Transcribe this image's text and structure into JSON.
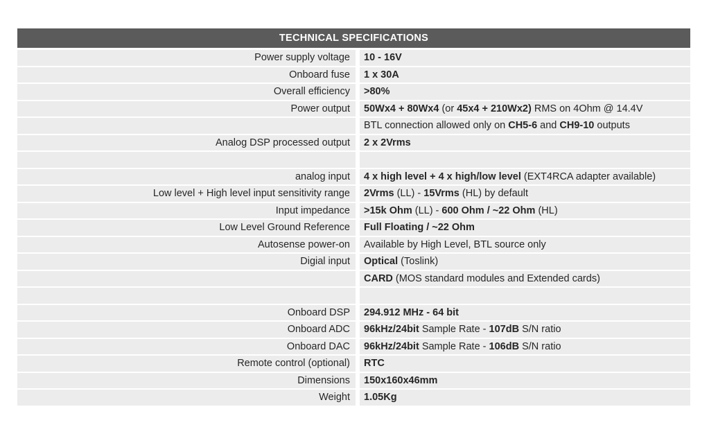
{
  "title": "TECHNICAL SPECIFICATIONS",
  "rows": [
    {
      "label": "Power supply voltage",
      "value": [
        {
          "t": "10 - 16V",
          "b": true
        }
      ]
    },
    {
      "label": "Onboard fuse",
      "value": [
        {
          "t": "1 x 30A",
          "b": true
        }
      ]
    },
    {
      "label": "Overall efficiency",
      "value": [
        {
          "t": ">80%",
          "b": true
        }
      ]
    },
    {
      "label": "Power output",
      "value": [
        {
          "t": "50Wx4 + 80Wx4",
          "b": true
        },
        {
          "t": " (or "
        },
        {
          "t": "45x4 + 210Wx2)",
          "b": true
        },
        {
          "t": " RMS on 4Ohm @ 14.4V"
        }
      ]
    },
    {
      "label": "",
      "value": [
        {
          "t": "BTL connection allowed only on "
        },
        {
          "t": "CH5-6",
          "b": true
        },
        {
          "t": " and "
        },
        {
          "t": "CH9-10",
          "b": true
        },
        {
          "t": " outputs"
        }
      ]
    },
    {
      "label": "Analog DSP processed output",
      "value": [
        {
          "t": "2 x 2Vrms",
          "b": true
        }
      ]
    },
    {
      "label": "",
      "value": []
    },
    {
      "label": "analog input",
      "value": [
        {
          "t": "4 x high level + 4 x high/low level",
          "b": true
        },
        {
          "t": " (EXT4RCA adapter available)"
        }
      ]
    },
    {
      "label": "Low level + High level input sensitivity range",
      "value": [
        {
          "t": "2Vrms",
          "b": true
        },
        {
          "t": " (LL) - "
        },
        {
          "t": "15Vrms",
          "b": true
        },
        {
          "t": " (HL) by default"
        }
      ]
    },
    {
      "label": "Input impedance",
      "value": [
        {
          "t": ">15k Ohm",
          "b": true
        },
        {
          "t": " (LL) - "
        },
        {
          "t": "600 Ohm / ~22 Ohm",
          "b": true
        },
        {
          "t": " (HL)"
        }
      ]
    },
    {
      "label": "Low Level Ground Reference",
      "value": [
        {
          "t": "Full Floating / ~22 Ohm",
          "b": true
        }
      ]
    },
    {
      "label": "Autosense power-on",
      "value": [
        {
          "t": "Available by High Level, BTL source only"
        }
      ]
    },
    {
      "label": "Digial input",
      "value": [
        {
          "t": "Optical",
          "b": true
        },
        {
          "t": " (Toslink)"
        }
      ]
    },
    {
      "label": "",
      "value": [
        {
          "t": "CARD",
          "b": true
        },
        {
          "t": " (MOS standard modules and Extended cards)"
        }
      ]
    },
    {
      "label": "",
      "value": []
    },
    {
      "label": "Onboard DSP",
      "value": [
        {
          "t": "294.912 MHz  - 64 bit",
          "b": true
        }
      ]
    },
    {
      "label": "Onboard ADC",
      "value": [
        {
          "t": "96kHz/24bit",
          "b": true
        },
        {
          "t": " Sample Rate - "
        },
        {
          "t": "107dB",
          "b": true
        },
        {
          "t": " S/N ratio"
        }
      ]
    },
    {
      "label": "Onboard DAC",
      "value": [
        {
          "t": "96kHz/24bit",
          "b": true
        },
        {
          "t": " Sample Rate - "
        },
        {
          "t": "106dB",
          "b": true
        },
        {
          "t": " S/N ratio"
        }
      ]
    },
    {
      "label": "Remote control (optional)",
      "value": [
        {
          "t": "RTC",
          "b": true
        }
      ]
    },
    {
      "label": "Dimensions",
      "value": [
        {
          "t": "150x160x46mm",
          "b": true
        }
      ]
    },
    {
      "label": "Weight",
      "value": [
        {
          "t": "1.05Kg",
          "b": true
        }
      ]
    }
  ]
}
